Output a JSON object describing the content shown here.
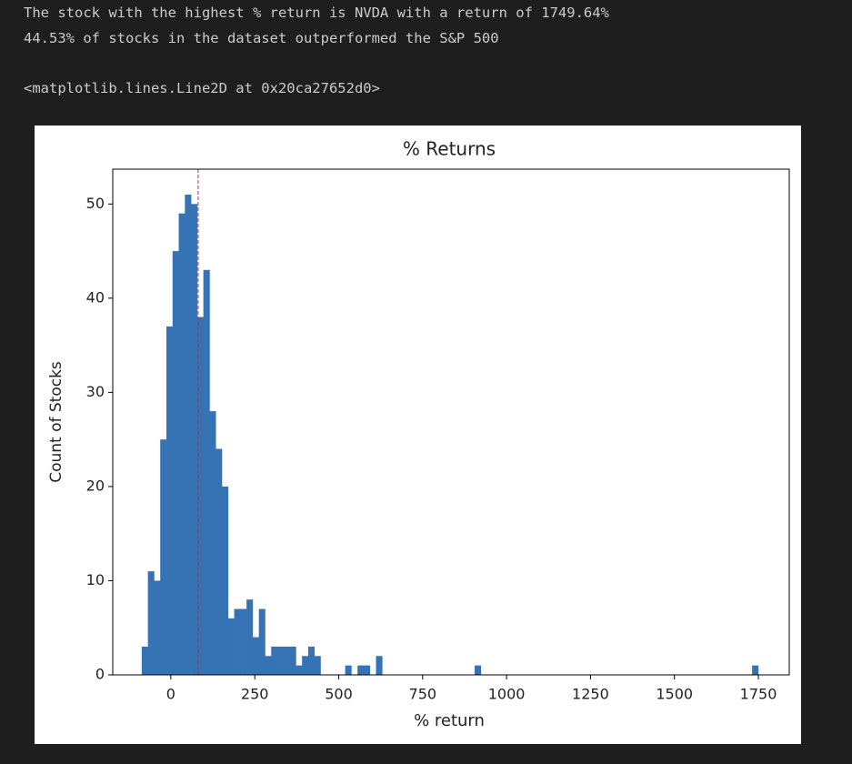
{
  "output": {
    "lines": [
      "The stock with the highest % return is NVDA with a return of 1749.64%",
      "44.53% of stocks in the dataset outperformed the S&P 500",
      "<matplotlib.lines.Line2D at 0x20ca27652d0>"
    ]
  },
  "chart_data": {
    "type": "histogram",
    "title": "% Returns",
    "x_label": "% return",
    "y_label": "Count of Stocks",
    "color": "#3573b5",
    "bins": [
      -86.7,
      -68.34,
      -49.97,
      -31.61,
      -13.25,
      5.12,
      23.48,
      41.84,
      60.21,
      78.57,
      96.93,
      115.3,
      133.66,
      152.02,
      170.39,
      188.75,
      207.11,
      225.48,
      243.84,
      262.2,
      280.57,
      298.93,
      317.29,
      335.66,
      354.02,
      372.39,
      390.75,
      409.11,
      427.48,
      445.84,
      464.2,
      482.57,
      500.93,
      519.29,
      537.66,
      556.02,
      574.38,
      592.75,
      611.11,
      629.47,
      647.84,
      666.2,
      684.56,
      702.93,
      721.29,
      739.65,
      758.02,
      776.38,
      794.74,
      813.11,
      831.47,
      849.83,
      868.2,
      886.56,
      904.92,
      923.29,
      941.65,
      960.02,
      978.38,
      996.74,
      1015.1,
      1033.47,
      1051.83,
      1070.19,
      1088.56,
      1106.92,
      1125.28,
      1143.65,
      1162.01,
      1180.37,
      1198.74,
      1217.1,
      1235.46,
      1253.83,
      1272.19,
      1290.55,
      1308.92,
      1327.28,
      1345.65,
      1364.01,
      1382.37,
      1400.74,
      1419.1,
      1437.46,
      1455.83,
      1474.19,
      1492.55,
      1510.92,
      1529.28,
      1547.64,
      1566.01,
      1584.37,
      1602.73,
      1621.1,
      1639.46,
      1657.82,
      1676.19,
      1694.55,
      1712.91,
      1731.28,
      1749.64
    ],
    "values": [
      3,
      11,
      10,
      25,
      37,
      45,
      49,
      51,
      50,
      38,
      43,
      28,
      24,
      20,
      6,
      7,
      7,
      8,
      4,
      7,
      2,
      3,
      3,
      3,
      3,
      1,
      2,
      3,
      2,
      0,
      0,
      0,
      0,
      1,
      0,
      1,
      1,
      0,
      2,
      0,
      0,
      0,
      0,
      0,
      0,
      0,
      0,
      0,
      0,
      0,
      0,
      0,
      0,
      0,
      1,
      0,
      0,
      0,
      0,
      0,
      0,
      0,
      0,
      0,
      0,
      0,
      0,
      0,
      0,
      0,
      0,
      0,
      0,
      0,
      0,
      0,
      0,
      0,
      0,
      0,
      0,
      0,
      0,
      0,
      0,
      0,
      0,
      0,
      0,
      0,
      0,
      0,
      0,
      0,
      0,
      0,
      0,
      0,
      0,
      1
    ],
    "vline": {
      "value": 81.3,
      "color": "#d62728"
    },
    "xlim": [
      -173,
      1842
    ],
    "ylim": [
      0,
      53.7
    ],
    "xticks": [
      0,
      250,
      500,
      750,
      1000,
      1250,
      1500,
      1750
    ],
    "yticks": [
      0,
      10,
      20,
      30,
      40,
      50
    ]
  }
}
